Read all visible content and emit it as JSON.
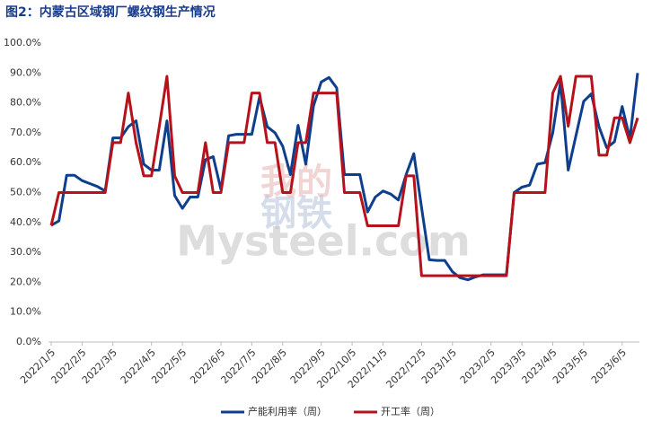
{
  "chart_data": {
    "type": "line",
    "title": "图2：内蒙古区域钢厂螺纹钢生产情况",
    "watermark": [
      "我的",
      "钢铁",
      "Mysteel.com"
    ],
    "categories": [
      "2022/1/5",
      null,
      null,
      null,
      "2022/2/5",
      null,
      null,
      null,
      "2022/3/5",
      null,
      null,
      null,
      null,
      "2022/4/5",
      null,
      null,
      null,
      "2022/5/5",
      null,
      null,
      null,
      null,
      "2022/6/5",
      null,
      null,
      null,
      "2022/7/5",
      null,
      null,
      null,
      "2022/8/5",
      null,
      null,
      null,
      null,
      "2022/9/5",
      null,
      null,
      null,
      "2022/10/5",
      null,
      null,
      null,
      "2022/11/5",
      null,
      null,
      null,
      null,
      "2022/12/5",
      null,
      null,
      null,
      "2023/1/5",
      null,
      null,
      null,
      null,
      "2023/2/5",
      null,
      null,
      null,
      "2023/3/5",
      null,
      null,
      null,
      "2023/4/5",
      null,
      null,
      null,
      "2023/5/5",
      null,
      null,
      null,
      null,
      "2023/6/5",
      null,
      null
    ],
    "series": [
      {
        "name": "产能利用率（周）",
        "color": "#0e3f8c",
        "values": [
          39,
          40.5,
          55.8,
          55.8,
          54,
          53,
          52,
          50.5,
          68.3,
          68.3,
          72,
          74,
          59.5,
          57.5,
          57.5,
          74,
          49,
          44.7,
          48.5,
          48.5,
          61,
          62,
          51,
          69,
          69.5,
          69.5,
          69.5,
          82,
          72,
          70,
          65.5,
          56,
          72.5,
          59.5,
          79,
          87,
          88.5,
          85,
          56,
          56,
          56,
          43.5,
          48.5,
          50.5,
          49.5,
          47.5,
          56,
          63,
          45,
          27.5,
          27.3,
          27.3,
          23.5,
          21.5,
          20.8,
          21.8,
          22.5,
          22.5,
          22.5,
          22.5,
          50,
          51.8,
          52.5,
          59.5,
          60,
          70,
          87,
          57.5,
          69,
          80.5,
          83,
          72,
          65,
          67,
          78.8,
          68,
          90
        ]
      },
      {
        "name": "开工率（周）",
        "color": "#b5121b",
        "values": [
          39,
          50,
          50,
          50,
          50,
          50,
          50,
          50,
          66.7,
          66.7,
          83.3,
          66.7,
          55.6,
          55.6,
          72,
          88.9,
          55.6,
          50,
          50,
          50,
          66.7,
          50,
          50,
          66.7,
          66.7,
          66.7,
          83.3,
          83.3,
          66.7,
          66.7,
          50,
          50,
          66.7,
          66.7,
          83.3,
          83.3,
          83.3,
          83.3,
          50,
          50,
          50,
          38.9,
          38.9,
          38.9,
          38.9,
          38.9,
          55.6,
          55.6,
          22.2,
          22.2,
          22.2,
          22.2,
          22.2,
          22.2,
          22.2,
          22.2,
          22.2,
          22.2,
          22.2,
          22.2,
          50,
          50,
          50,
          50,
          50,
          83.3,
          88.9,
          72.2,
          88.9,
          88.9,
          88.9,
          62.5,
          62.5,
          75,
          75,
          66.7,
          75
        ]
      }
    ],
    "ylim": [
      0,
      100
    ],
    "yticks": [
      {
        "value": 0,
        "label": "0.0%"
      },
      {
        "value": 10,
        "label": "10.0%"
      },
      {
        "value": 20,
        "label": "20.0%"
      },
      {
        "value": 30,
        "label": "30.0%"
      },
      {
        "value": 40,
        "label": "40.0%"
      },
      {
        "value": 50,
        "label": "50.0%"
      },
      {
        "value": 60,
        "label": "60.0%"
      },
      {
        "value": 70,
        "label": "70.0%"
      },
      {
        "value": 80,
        "label": "80.0%"
      },
      {
        "value": 90,
        "label": "90.0%"
      },
      {
        "value": 100,
        "label": "100.0%"
      }
    ],
    "grid": false,
    "legend": "bottom"
  }
}
